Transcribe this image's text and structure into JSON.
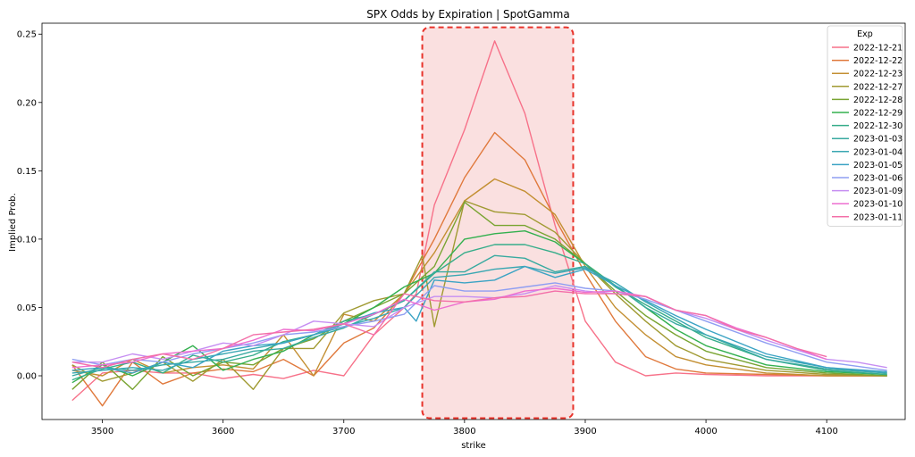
{
  "chart_data": {
    "type": "line",
    "title": "SPX Odds by Expiration | SpotGamma",
    "xlabel": "strike",
    "ylabel": "Implied Prob.",
    "xlim": [
      3450,
      4165
    ],
    "ylim": [
      -0.032,
      0.258
    ],
    "xticks": [
      "3500",
      "3600",
      "3700",
      "3800",
      "3900",
      "4000",
      "4100"
    ],
    "yticks": [
      "0.00",
      "0.05",
      "0.10",
      "0.15",
      "0.20",
      "0.25"
    ],
    "xtick_values": [
      3500,
      3600,
      3700,
      3800,
      3900,
      4000,
      4100
    ],
    "ytick_values": [
      0,
      0.05,
      0.1,
      0.15,
      0.2,
      0.25
    ],
    "grid": false,
    "legend": {
      "title": "Exp",
      "placement": "top-right"
    },
    "highlight": {
      "x_range": [
        3765,
        3890
      ],
      "y_range": [
        -0.031,
        0.255
      ],
      "fill": "#f5c6c6",
      "stroke": "#e8322a"
    },
    "series": [
      {
        "name": "2022-12-21",
        "color": "#f77189",
        "x": [
          3475,
          3500,
          3525,
          3550,
          3575,
          3600,
          3625,
          3650,
          3675,
          3700,
          3725,
          3750,
          3760,
          3775,
          3800,
          3825,
          3850,
          3875,
          3900,
          3925,
          3950,
          3975,
          4000,
          4050,
          4100,
          4150
        ],
        "y": [
          -0.018,
          0.002,
          0.004,
          0.002,
          0.002,
          -0.002,
          0.001,
          -0.002,
          0.004,
          0.0,
          0.03,
          0.05,
          0.06,
          0.125,
          0.18,
          0.245,
          0.192,
          0.11,
          0.04,
          0.01,
          0.0,
          0.002,
          0.001,
          0.0,
          0.0,
          0.0
        ]
      },
      {
        "name": "2022-12-22",
        "color": "#e0793c",
        "x": [
          3475,
          3500,
          3525,
          3550,
          3575,
          3600,
          3625,
          3650,
          3675,
          3700,
          3725,
          3750,
          3775,
          3800,
          3825,
          3850,
          3875,
          3900,
          3925,
          3950,
          3975,
          4000,
          4050,
          4100,
          4150
        ],
        "y": [
          0.008,
          -0.022,
          0.01,
          -0.006,
          0.002,
          0.005,
          0.003,
          0.012,
          0.0,
          0.024,
          0.035,
          0.06,
          0.1,
          0.145,
          0.178,
          0.158,
          0.115,
          0.075,
          0.04,
          0.014,
          0.005,
          0.002,
          0.001,
          0.0,
          0.0
        ]
      },
      {
        "name": "2022-12-23",
        "color": "#c38f32",
        "x": [
          3475,
          3500,
          3525,
          3550,
          3575,
          3600,
          3625,
          3650,
          3675,
          3700,
          3725,
          3750,
          3775,
          3800,
          3825,
          3850,
          3875,
          3900,
          3925,
          3950,
          3975,
          4000,
          4050,
          4100,
          4150
        ],
        "y": [
          0.004,
          0.0,
          0.012,
          0.002,
          0.006,
          0.008,
          0.005,
          0.03,
          0.0,
          0.045,
          0.04,
          0.06,
          0.09,
          0.128,
          0.144,
          0.135,
          0.118,
          0.08,
          0.05,
          0.03,
          0.014,
          0.008,
          0.002,
          0.0,
          0.0
        ]
      },
      {
        "name": "2022-12-27",
        "color": "#a09a32",
        "x": [
          3475,
          3500,
          3525,
          3550,
          3575,
          3600,
          3625,
          3650,
          3675,
          3700,
          3725,
          3750,
          3765,
          3775,
          3800,
          3825,
          3850,
          3875,
          3900,
          3925,
          3950,
          3975,
          4000,
          4050,
          4100,
          4150
        ],
        "y": [
          0.008,
          -0.004,
          0.002,
          0.01,
          -0.004,
          0.012,
          -0.01,
          0.02,
          0.02,
          0.046,
          0.055,
          0.06,
          0.088,
          0.036,
          0.128,
          0.12,
          0.118,
          0.105,
          0.082,
          0.06,
          0.04,
          0.022,
          0.012,
          0.004,
          0.001,
          0.0
        ]
      },
      {
        "name": "2022-12-28",
        "color": "#79a432",
        "x": [
          3475,
          3500,
          3525,
          3550,
          3575,
          3600,
          3625,
          3650,
          3675,
          3700,
          3725,
          3750,
          3775,
          3800,
          3825,
          3850,
          3875,
          3900,
          3925,
          3950,
          3975,
          4000,
          4050,
          4100,
          4150
        ],
        "y": [
          -0.01,
          0.01,
          -0.01,
          0.014,
          0.0,
          0.01,
          0.008,
          0.02,
          0.027,
          0.04,
          0.05,
          0.06,
          0.08,
          0.127,
          0.11,
          0.11,
          0.1,
          0.082,
          0.062,
          0.044,
          0.03,
          0.018,
          0.006,
          0.002,
          0.0
        ]
      },
      {
        "name": "2022-12-29",
        "color": "#33b04f",
        "x": [
          3475,
          3500,
          3525,
          3550,
          3575,
          3600,
          3625,
          3650,
          3675,
          3700,
          3725,
          3750,
          3775,
          3800,
          3825,
          3850,
          3875,
          3900,
          3925,
          3950,
          3975,
          4000,
          4050,
          4100,
          4150
        ],
        "y": [
          -0.005,
          0.008,
          0.0,
          0.01,
          0.022,
          0.004,
          0.012,
          0.018,
          0.03,
          0.038,
          0.05,
          0.065,
          0.075,
          0.1,
          0.104,
          0.106,
          0.098,
          0.082,
          0.066,
          0.05,
          0.034,
          0.022,
          0.008,
          0.003,
          0.001
        ]
      },
      {
        "name": "2022-12-30",
        "color": "#36ad8a",
        "x": [
          3475,
          3500,
          3525,
          3550,
          3575,
          3600,
          3625,
          3650,
          3675,
          3700,
          3725,
          3750,
          3775,
          3800,
          3825,
          3850,
          3875,
          3900,
          3925,
          3950,
          3975,
          4000,
          4050,
          4100,
          4150
        ],
        "y": [
          -0.003,
          0.005,
          0.01,
          0.002,
          0.015,
          0.01,
          0.015,
          0.025,
          0.03,
          0.04,
          0.045,
          0.055,
          0.075,
          0.09,
          0.096,
          0.096,
          0.09,
          0.082,
          0.065,
          0.052,
          0.04,
          0.028,
          0.012,
          0.004,
          0.001
        ]
      },
      {
        "name": "2023-01-03",
        "color": "#38aaa0",
        "x": [
          3475,
          3500,
          3525,
          3550,
          3575,
          3600,
          3625,
          3650,
          3675,
          3700,
          3725,
          3750,
          3775,
          3800,
          3825,
          3850,
          3875,
          3900,
          3925,
          3950,
          3975,
          4000,
          4050,
          4100,
          4150
        ],
        "y": [
          0.0,
          0.006,
          0.004,
          0.008,
          0.01,
          0.012,
          0.018,
          0.02,
          0.028,
          0.035,
          0.045,
          0.055,
          0.076,
          0.076,
          0.088,
          0.086,
          0.076,
          0.08,
          0.066,
          0.05,
          0.038,
          0.03,
          0.012,
          0.005,
          0.002
        ]
      },
      {
        "name": "2023-01-04",
        "color": "#39a7b2",
        "x": [
          3475,
          3500,
          3525,
          3550,
          3575,
          3600,
          3625,
          3650,
          3675,
          3700,
          3725,
          3750,
          3775,
          3800,
          3825,
          3850,
          3875,
          3900,
          3925,
          3950,
          3975,
          4000,
          4050,
          4100,
          4150
        ],
        "y": [
          0.002,
          0.004,
          0.006,
          0.004,
          0.012,
          0.016,
          0.02,
          0.024,
          0.03,
          0.036,
          0.042,
          0.05,
          0.072,
          0.074,
          0.078,
          0.08,
          0.075,
          0.079,
          0.068,
          0.054,
          0.042,
          0.03,
          0.014,
          0.006,
          0.002
        ]
      },
      {
        "name": "2023-01-05",
        "color": "#3ba3c4",
        "x": [
          3475,
          3500,
          3525,
          3550,
          3575,
          3600,
          3625,
          3650,
          3675,
          3700,
          3725,
          3750,
          3760,
          3775,
          3800,
          3825,
          3850,
          3875,
          3900,
          3925,
          3950,
          3975,
          4000,
          4050,
          4100,
          4150
        ],
        "y": [
          0.004,
          0.006,
          0.002,
          0.01,
          0.006,
          0.018,
          0.022,
          0.024,
          0.03,
          0.038,
          0.046,
          0.05,
          0.04,
          0.07,
          0.068,
          0.07,
          0.08,
          0.072,
          0.078,
          0.066,
          0.055,
          0.044,
          0.034,
          0.016,
          0.006,
          0.003
        ]
      },
      {
        "name": "2023-01-06",
        "color": "#8f9ef2",
        "x": [
          3475,
          3500,
          3525,
          3550,
          3575,
          3600,
          3625,
          3650,
          3675,
          3700,
          3725,
          3750,
          3775,
          3800,
          3825,
          3850,
          3875,
          3900,
          3925,
          3950,
          3975,
          4000,
          4050,
          4100,
          4150
        ],
        "y": [
          0.012,
          0.008,
          0.012,
          0.01,
          0.016,
          0.02,
          0.024,
          0.03,
          0.032,
          0.036,
          0.04,
          0.045,
          0.066,
          0.062,
          0.062,
          0.065,
          0.068,
          0.064,
          0.062,
          0.056,
          0.048,
          0.04,
          0.024,
          0.01,
          0.004
        ]
      },
      {
        "name": "2023-01-09",
        "color": "#c68ef2",
        "x": [
          3475,
          3500,
          3525,
          3550,
          3575,
          3600,
          3625,
          3650,
          3675,
          3700,
          3725,
          3750,
          3775,
          3800,
          3825,
          3850,
          3875,
          3900,
          3925,
          3950,
          3975,
          4000,
          4050,
          4100,
          4125,
          4150
        ],
        "y": [
          0.01,
          0.01,
          0.016,
          0.012,
          0.018,
          0.024,
          0.022,
          0.03,
          0.04,
          0.038,
          0.036,
          0.05,
          0.058,
          0.058,
          0.057,
          0.06,
          0.066,
          0.062,
          0.06,
          0.058,
          0.048,
          0.042,
          0.026,
          0.012,
          0.01,
          0.006
        ]
      },
      {
        "name": "2023-01-10",
        "color": "#ee6fd0",
        "x": [
          3475,
          3500,
          3525,
          3550,
          3575,
          3600,
          3625,
          3650,
          3675,
          3700,
          3725,
          3750,
          3775,
          3800,
          3825,
          3850,
          3875,
          3900,
          3925,
          3950,
          3975,
          4000,
          4025,
          4050,
          4075,
          4100
        ],
        "y": [
          0.006,
          0.008,
          0.01,
          0.016,
          0.018,
          0.02,
          0.026,
          0.034,
          0.033,
          0.038,
          0.045,
          0.056,
          0.048,
          0.054,
          0.056,
          0.062,
          0.064,
          0.061,
          0.062,
          0.058,
          0.048,
          0.044,
          0.035,
          0.028,
          0.02,
          0.012
        ]
      },
      {
        "name": "2023-01-11",
        "color": "#f36fa8",
        "x": [
          3475,
          3500,
          3525,
          3550,
          3575,
          3600,
          3625,
          3650,
          3675,
          3700,
          3725,
          3750,
          3775,
          3800,
          3825,
          3850,
          3875,
          3900,
          3925,
          3950,
          3975,
          4000,
          4025,
          4050,
          4075,
          4100
        ],
        "y": [
          0.01,
          0.006,
          0.012,
          0.016,
          0.012,
          0.02,
          0.03,
          0.032,
          0.034,
          0.038,
          0.03,
          0.06,
          0.055,
          0.054,
          0.057,
          0.058,
          0.062,
          0.06,
          0.06,
          0.058,
          0.048,
          0.044,
          0.034,
          0.028,
          0.02,
          0.014
        ]
      }
    ]
  }
}
